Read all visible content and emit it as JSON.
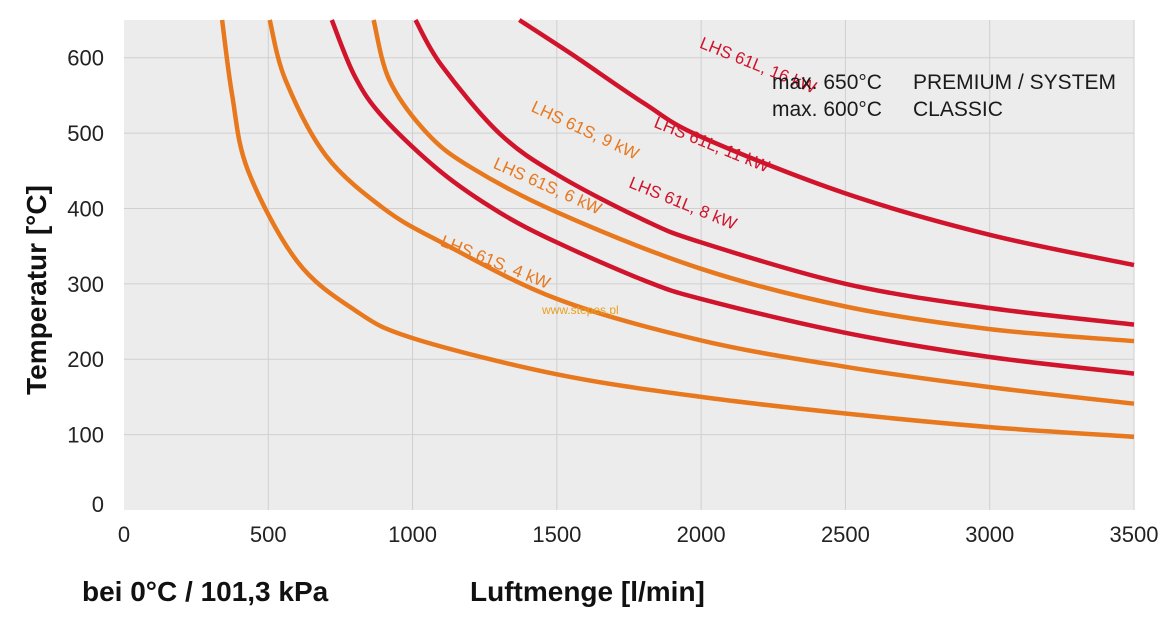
{
  "chart_data": {
    "type": "line",
    "xlabel": "Luftmenge [l/min]",
    "ylabel": "Temperatur [°C]",
    "footnote": "bei 0°C / 101,3 kPa",
    "xlim": [
      0,
      3500
    ],
    "ylim": [
      0,
      650
    ],
    "x_ticks": [
      0,
      500,
      1000,
      1500,
      2000,
      2500,
      3000,
      3500
    ],
    "y_ticks": [
      0,
      100,
      200,
      300,
      400,
      500,
      600
    ],
    "grid": true,
    "notes": [
      {
        "max": "max. 650°C",
        "model": "PREMIUM / SYSTEM"
      },
      {
        "max": "max. 600°C",
        "model": "CLASSIC"
      }
    ],
    "watermark": "www.stepes.pl",
    "series": [
      {
        "name": "LHS 61S, 4 kW",
        "color": "#e8781e",
        "points": [
          [
            340,
            650
          ],
          [
            375,
            550
          ],
          [
            430,
            450
          ],
          [
            600,
            330
          ],
          [
            800,
            265
          ],
          [
            1000,
            228
          ],
          [
            1500,
            180
          ],
          [
            2000,
            150
          ],
          [
            2500,
            128
          ],
          [
            3000,
            110
          ],
          [
            3500,
            97
          ]
        ],
        "label_at": [
          1280,
          322
        ],
        "label_angle": 22
      },
      {
        "name": "LHS 61S, 6 kW",
        "color": "#e8781e",
        "points": [
          [
            505,
            650
          ],
          [
            560,
            570
          ],
          [
            700,
            470
          ],
          [
            900,
            400
          ],
          [
            1100,
            355
          ],
          [
            1500,
            280
          ],
          [
            2000,
            225
          ],
          [
            2500,
            190
          ],
          [
            3000,
            163
          ],
          [
            3500,
            141
          ]
        ],
        "label_at": [
          1460,
          423
        ],
        "label_angle": 24
      },
      {
        "name": "LHS 61S, 9 kW",
        "color": "#e8781e",
        "points": [
          [
            865,
            650
          ],
          [
            920,
            570
          ],
          [
            1050,
            500
          ],
          [
            1200,
            455
          ],
          [
            1500,
            395
          ],
          [
            2000,
            320
          ],
          [
            2500,
            270
          ],
          [
            3000,
            240
          ],
          [
            3500,
            224
          ]
        ],
        "label_at": [
          1590,
          497
        ],
        "label_angle": 25
      },
      {
        "name": "LHS 61L, 8 kW",
        "color": "#d0142c",
        "points": [
          [
            720,
            650
          ],
          [
            800,
            575
          ],
          [
            900,
            520
          ],
          [
            1100,
            448
          ],
          [
            1300,
            395
          ],
          [
            1500,
            355
          ],
          [
            1800,
            305
          ],
          [
            2000,
            280
          ],
          [
            2500,
            235
          ],
          [
            3000,
            203
          ],
          [
            3500,
            181
          ]
        ],
        "label_at": [
          1930,
          400
        ],
        "label_angle": 22
      },
      {
        "name": "LHS 61L, 11 kW",
        "color": "#d0142c",
        "points": [
          [
            1010,
            650
          ],
          [
            1100,
            590
          ],
          [
            1300,
            500
          ],
          [
            1500,
            445
          ],
          [
            1800,
            385
          ],
          [
            2000,
            355
          ],
          [
            2500,
            300
          ],
          [
            3000,
            268
          ],
          [
            3500,
            246
          ]
        ],
        "label_at": [
          2030,
          478
        ],
        "label_angle": 22
      },
      {
        "name": "LHS 61L, 16 kW",
        "color": "#d0142c",
        "points": [
          [
            1370,
            650
          ],
          [
            1550,
            605
          ],
          [
            1800,
            540
          ],
          [
            2000,
            495
          ],
          [
            2500,
            420
          ],
          [
            3000,
            365
          ],
          [
            3500,
            325
          ]
        ],
        "label_at": [
          2190,
          583
        ],
        "label_angle": 22
      }
    ]
  }
}
